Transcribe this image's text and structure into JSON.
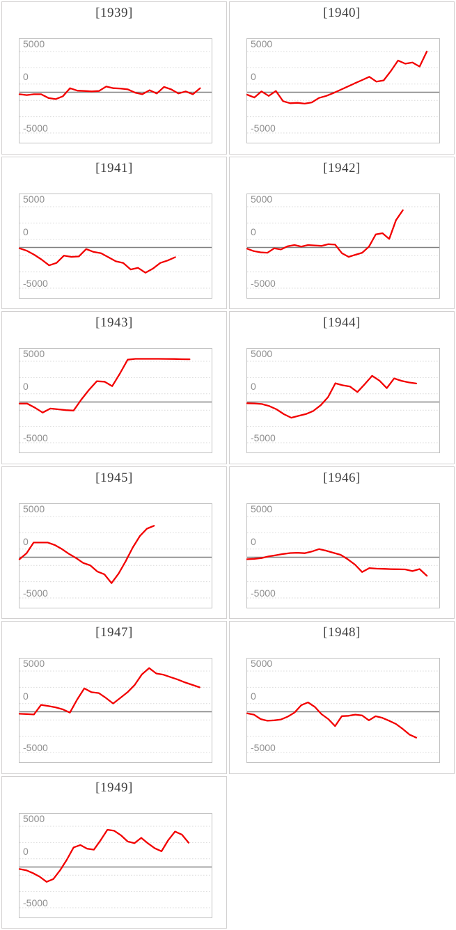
{
  "colors": {
    "series_line": "#f20000",
    "zero_axis": "#808080",
    "gridline": "#d9d9d9",
    "plot_border": "#c1c1c1",
    "tile_border": "#d2d0d0",
    "title_text": "#404040",
    "tick_text": "#8e8e8e",
    "background": "#ffffff"
  },
  "axis": {
    "tick_labels": [
      "5000",
      "0",
      "-5000"
    ],
    "tick_values": [
      5000,
      0,
      -5000
    ],
    "gridline_values": [
      5000,
      3000,
      1000,
      -1000,
      -3000,
      -5000
    ],
    "zero_line_value": 0,
    "ylim": [
      -6300,
      6400
    ],
    "grid_style": "dotted",
    "x_axis_labels": "none",
    "legend": "none"
  },
  "chart_data": [
    {
      "type": "line",
      "title": "[1939]",
      "x_extent": 0.94,
      "values": [
        -250,
        -350,
        -250,
        -250,
        -700,
        -850,
        -500,
        500,
        200,
        150,
        100,
        150,
        700,
        500,
        450,
        350,
        -50,
        -250,
        250,
        -150,
        650,
        350,
        -150,
        100,
        -250,
        500
      ]
    },
    {
      "type": "line",
      "title": "[1940]",
      "x_extent": 0.935,
      "values": [
        -300,
        -650,
        100,
        -450,
        150,
        -1100,
        -1350,
        -1300,
        -1400,
        -1250,
        -700,
        -450,
        -100,
        300,
        700,
        1100,
        1500,
        1900,
        1300,
        1450,
        2600,
        3900,
        3500,
        3650,
        3150,
        5000
      ]
    },
    {
      "type": "line",
      "title": "[1941]",
      "x_extent": 0.81,
      "values": [
        -100,
        -400,
        -900,
        -1500,
        -2200,
        -1900,
        -1000,
        -1150,
        -1100,
        -200,
        -550,
        -700,
        -1200,
        -1700,
        -1900,
        -2700,
        -2500,
        -3100,
        -2600,
        -1900,
        -1600,
        -1200
      ]
    },
    {
      "type": "line",
      "title": "[1942]",
      "x_extent": 0.81,
      "values": [
        -150,
        -450,
        -600,
        -650,
        -100,
        -250,
        150,
        300,
        100,
        300,
        250,
        200,
        400,
        350,
        -700,
        -1150,
        -900,
        -650,
        100,
        1600,
        1750,
        1050,
        3350,
        4570
      ]
    },
    {
      "type": "line",
      "title": "[1943]",
      "x_extent": 0.885,
      "values": [
        -200,
        -200,
        -700,
        -1300,
        -800,
        -900,
        -1000,
        -1050,
        300,
        1500,
        2550,
        2500,
        1950,
        3500,
        5200,
        5300,
        5300,
        5300,
        5300,
        5290,
        5280,
        5260,
        5250
      ]
    },
    {
      "type": "line",
      "title": "[1944]",
      "x_extent": 0.88,
      "values": [
        -150,
        -180,
        -250,
        -500,
        -900,
        -1500,
        -1930,
        -1700,
        -1480,
        -1100,
        -400,
        600,
        2300,
        2050,
        1900,
        1220,
        2200,
        3210,
        2620,
        1700,
        2900,
        2600,
        2400,
        2270
      ]
    },
    {
      "type": "line",
      "title": "[1945]",
      "x_extent": 0.7,
      "values": [
        -250,
        500,
        1800,
        1800,
        1800,
        1500,
        1000,
        400,
        -100,
        -700,
        -1000,
        -1760,
        -2100,
        -3180,
        -2000,
        -500,
        1200,
        2600,
        3500,
        3860
      ]
    },
    {
      "type": "line",
      "title": "[1946]",
      "x_extent": 0.935,
      "values": [
        -250,
        -200,
        -100,
        100,
        250,
        400,
        510,
        550,
        500,
        700,
        1000,
        800,
        550,
        300,
        -250,
        -900,
        -1820,
        -1330,
        -1400,
        -1430,
        -1460,
        -1480,
        -1500,
        -1700,
        -1450,
        -2270
      ]
    },
    {
      "type": "line",
      "title": "[1947]",
      "x_extent": 0.937,
      "values": [
        -250,
        -280,
        -330,
        850,
        700,
        550,
        300,
        -100,
        1500,
        2870,
        2400,
        2300,
        1700,
        1020,
        1700,
        2400,
        3300,
        4600,
        5370,
        4700,
        4550,
        4250,
        3950,
        3600,
        3300,
        3000
      ]
    },
    {
      "type": "line",
      "title": "[1948]",
      "x_extent": 0.88,
      "values": [
        -200,
        -350,
        -900,
        -1100,
        -1050,
        -950,
        -600,
        -100,
        800,
        1150,
        600,
        -300,
        -900,
        -1760,
        -540,
        -500,
        -350,
        -450,
        -1050,
        -550,
        -750,
        -1100,
        -1500,
        -2100,
        -2800,
        -3180
      ]
    },
    {
      "type": "line",
      "title": "[1949]",
      "x_extent": 0.88,
      "values": [
        -250,
        -400,
        -750,
        -1200,
        -1820,
        -1480,
        -400,
        900,
        2400,
        2700,
        2250,
        2130,
        3300,
        4570,
        4450,
        3900,
        3130,
        2930,
        3580,
        2900,
        2300,
        1930,
        3300,
        4350,
        3980,
        2980
      ]
    }
  ]
}
